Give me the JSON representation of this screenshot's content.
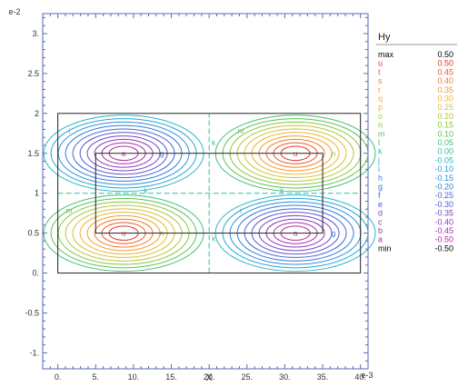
{
  "chart_data": {
    "type": "contour",
    "xlabel": "X",
    "x_scale_label": "e-3",
    "y_scale_label": "e-2",
    "x_ticks": [
      "0.",
      "5.",
      "10.",
      "15.",
      "20.",
      "25.",
      "30.",
      "35.",
      "40."
    ],
    "y_ticks": [
      "3.",
      "2.5",
      "2",
      "1.5",
      "1",
      "0.5",
      "0.",
      "-0.5",
      "-1."
    ],
    "xlim": [
      -2,
      41
    ],
    "ylim": [
      -1.2,
      3.25
    ],
    "outer_box": {
      "x": [
        0,
        40
      ],
      "y": [
        0,
        2
      ]
    },
    "inner_box": {
      "x": [
        5,
        35
      ],
      "y": [
        0.5,
        1.5
      ]
    },
    "lobes": [
      {
        "center": [
          8.7,
          1.5
        ],
        "sign": -1,
        "peak_label": "a"
      },
      {
        "center": [
          31.4,
          1.5
        ],
        "sign": 1,
        "peak_label": "u"
      },
      {
        "center": [
          8.7,
          0.5
        ],
        "sign": 1,
        "peak_label": "u"
      },
      {
        "center": [
          31.4,
          0.5
        ],
        "sign": -1,
        "peak_label": "a"
      }
    ],
    "legend": {
      "title": "Hy",
      "position": "right",
      "entries": [
        {
          "label": "max",
          "value": "0.50",
          "color": "#000000"
        },
        {
          "label": "u",
          "value": "0.50",
          "color": "#e8322c"
        },
        {
          "label": "t",
          "value": "0.45",
          "color": "#ed5a2a"
        },
        {
          "label": "s",
          "value": "0.40",
          "color": "#f07d2c"
        },
        {
          "label": "r",
          "value": "0.35",
          "color": "#f29c2e"
        },
        {
          "label": "q",
          "value": "0.30",
          "color": "#e9b530"
        },
        {
          "label": "p",
          "value": "0.25",
          "color": "#d4c234"
        },
        {
          "label": "o",
          "value": "0.20",
          "color": "#b0c83a"
        },
        {
          "label": "n",
          "value": "0.15",
          "color": "#86c640"
        },
        {
          "label": "m",
          "value": "0.10",
          "color": "#5ec24e"
        },
        {
          "label": "l",
          "value": "0.05",
          "color": "#3ec07a"
        },
        {
          "label": "k",
          "value": "0.00",
          "color": "#2ebfa5"
        },
        {
          "label": "j",
          "value": "-0.05",
          "color": "#2ab6c6"
        },
        {
          "label": "i",
          "value": "-0.10",
          "color": "#2aa3d6"
        },
        {
          "label": "h",
          "value": "-0.15",
          "color": "#2b8fdc"
        },
        {
          "label": "g",
          "value": "-0.20",
          "color": "#2f7ad8"
        },
        {
          "label": "f",
          "value": "-0.25",
          "color": "#4466d3"
        },
        {
          "label": "e",
          "value": "-0.30",
          "color": "#5a54cc"
        },
        {
          "label": "d",
          "value": "-0.35",
          "color": "#7446c2"
        },
        {
          "label": "c",
          "value": "-0.40",
          "color": "#8c3cb8"
        },
        {
          "label": "b",
          "value": "-0.45",
          "color": "#a032b0"
        },
        {
          "label": "a",
          "value": "-0.50",
          "color": "#b22aa4"
        },
        {
          "label": "min",
          "value": "-0.50",
          "color": "#000000"
        }
      ]
    },
    "grid": false
  }
}
